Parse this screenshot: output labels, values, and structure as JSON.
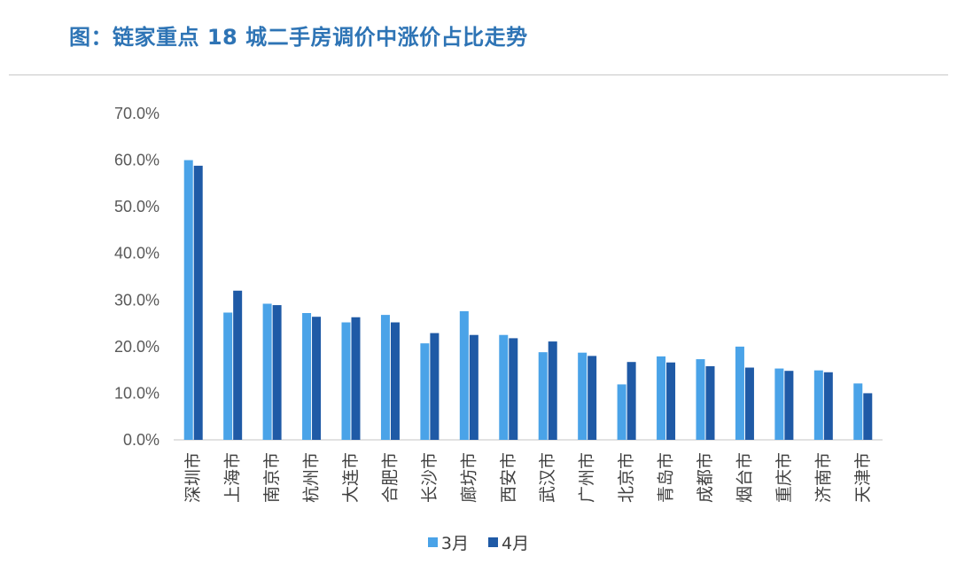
{
  "title": "图：链家重点 18 城二手房调价中涨价占比走势",
  "colors": {
    "title": "#2e74b5",
    "series_march": "#4aa3e8",
    "series_april": "#1f5aa6",
    "axis": "#d0d0d0"
  },
  "chart_data": {
    "type": "bar",
    "categories": [
      "深圳市",
      "上海市",
      "南京市",
      "杭州市",
      "大连市",
      "合肥市",
      "长沙市",
      "廊坊市",
      "西安市",
      "武汉市",
      "广州市",
      "北京市",
      "青岛市",
      "成都市",
      "烟台市",
      "重庆市",
      "济南市",
      "天津市"
    ],
    "series": [
      {
        "name": "3月",
        "values": [
          60.0,
          27.3,
          29.2,
          27.2,
          25.2,
          26.8,
          20.7,
          27.6,
          22.5,
          18.8,
          18.7,
          11.9,
          17.9,
          17.3,
          20.0,
          15.3,
          14.9,
          12.1
        ]
      },
      {
        "name": "4月",
        "values": [
          58.8,
          32.0,
          28.9,
          26.4,
          26.3,
          25.2,
          22.9,
          22.5,
          21.8,
          21.1,
          18.0,
          16.7,
          16.6,
          15.8,
          15.5,
          14.8,
          14.5,
          10.0
        ]
      }
    ],
    "ylim": [
      0,
      70
    ],
    "yticks": [
      "0.0%",
      "10.0%",
      "20.0%",
      "30.0%",
      "40.0%",
      "50.0%",
      "60.0%",
      "70.0%"
    ],
    "grid": false,
    "legend": "bottom-center"
  }
}
